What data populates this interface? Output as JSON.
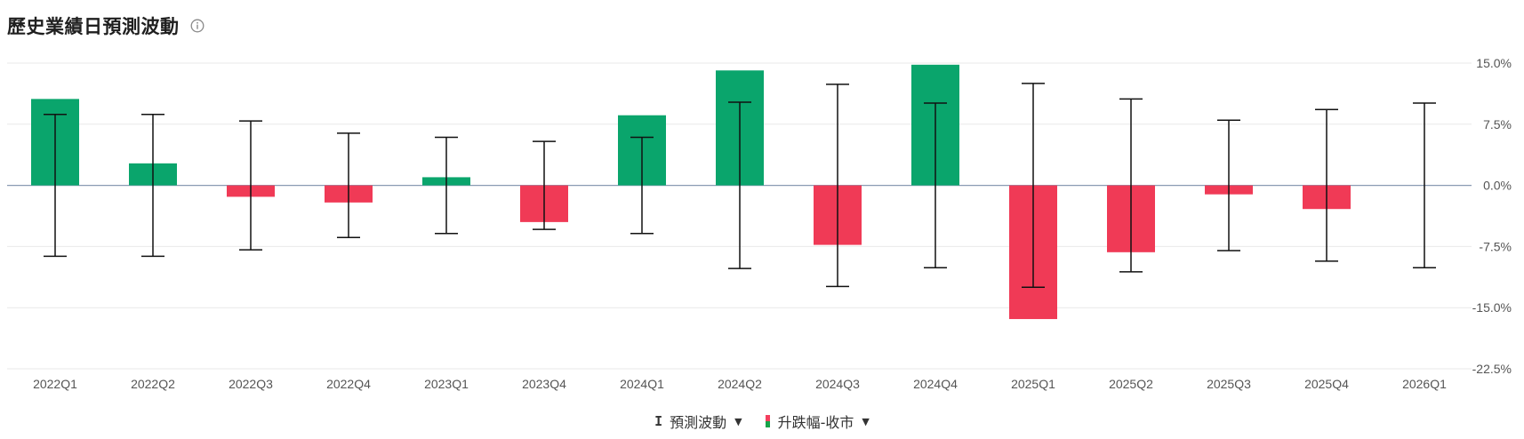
{
  "header": {
    "title": "歷史業績日預測波動",
    "info_icon": "info-circle-icon"
  },
  "legend": {
    "items": [
      {
        "symbol": "I",
        "label": "預測波動",
        "icon": "error-bar-icon"
      },
      {
        "label": "升跌幅-收市",
        "icon": "bar-swatch-icon"
      }
    ]
  },
  "colors": {
    "up": "#0aa56c",
    "down": "#f03a56",
    "zero_line": "#8a9bb3",
    "grid": "#e9e9e9",
    "whisker": "#111111"
  },
  "chart_data": {
    "type": "bar",
    "categories": [
      "2022Q1",
      "2022Q2",
      "2022Q3",
      "2022Q4",
      "2023Q1",
      "2023Q4",
      "2024Q1",
      "2024Q2",
      "2024Q3",
      "2024Q4",
      "2025Q1",
      "2025Q2",
      "2025Q3",
      "2025Q4",
      "2026Q1"
    ],
    "series": [
      {
        "name": "升跌幅-收市",
        "values": [
          10.6,
          2.7,
          -1.4,
          -2.1,
          1.0,
          -4.5,
          8.6,
          14.1,
          -7.3,
          14.8,
          -16.4,
          -8.2,
          -1.1,
          -2.9,
          null
        ]
      },
      {
        "name": "預測波動",
        "type": "errorbar",
        "values": [
          8.7,
          8.7,
          7.9,
          6.4,
          5.9,
          5.4,
          5.9,
          10.2,
          12.4,
          10.1,
          12.5,
          10.6,
          8.0,
          9.3,
          10.1
        ]
      }
    ],
    "ylim": [
      -22.5,
      15.0
    ],
    "yticks": [
      "15.0%",
      "7.5%",
      "0.0%",
      "-7.5%",
      "-15.0%",
      "-22.5%"
    ],
    "ytick_values": [
      15.0,
      7.5,
      0.0,
      -7.5,
      -15.0,
      -22.5
    ],
    "grid": true,
    "legend_position": "bottom-center"
  }
}
